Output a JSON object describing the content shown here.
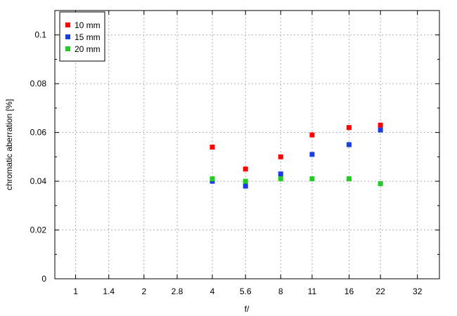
{
  "chart_data": {
    "type": "scatter",
    "title": "",
    "xlabel": "f/",
    "ylabel": "chromatic aberration [%]",
    "xscale": "log",
    "x_ticks": [
      1,
      1.4,
      2,
      2.8,
      4,
      5.6,
      8,
      11,
      16,
      22,
      32
    ],
    "x_tick_labels": [
      "1",
      "1.4",
      "2",
      "2.8",
      "4",
      "5.6",
      "8",
      "11",
      "16",
      "22",
      "32"
    ],
    "xlim": [
      0.81,
      40
    ],
    "ylim": [
      0,
      0.11
    ],
    "y_ticks": [
      0,
      0.02,
      0.04,
      0.06,
      0.08,
      0.1
    ],
    "y_tick_labels": [
      "0",
      "0.02",
      "0.04",
      "0.06",
      "0.08",
      "0.1"
    ],
    "grid": true,
    "legend_position": "top-left",
    "x": [
      4,
      5.6,
      8,
      11,
      16,
      22
    ],
    "series": [
      {
        "name": "10 mm",
        "color": "#ff0000",
        "values": [
          0.054,
          0.045,
          0.05,
          0.059,
          0.062,
          0.063
        ]
      },
      {
        "name": "15 mm",
        "color": "#1a3fe0",
        "values": [
          0.04,
          0.038,
          0.043,
          0.051,
          0.055,
          0.061
        ]
      },
      {
        "name": "20 mm",
        "color": "#22cc22",
        "values": [
          0.041,
          0.04,
          0.041,
          0.041,
          0.041,
          0.039
        ]
      }
    ]
  }
}
